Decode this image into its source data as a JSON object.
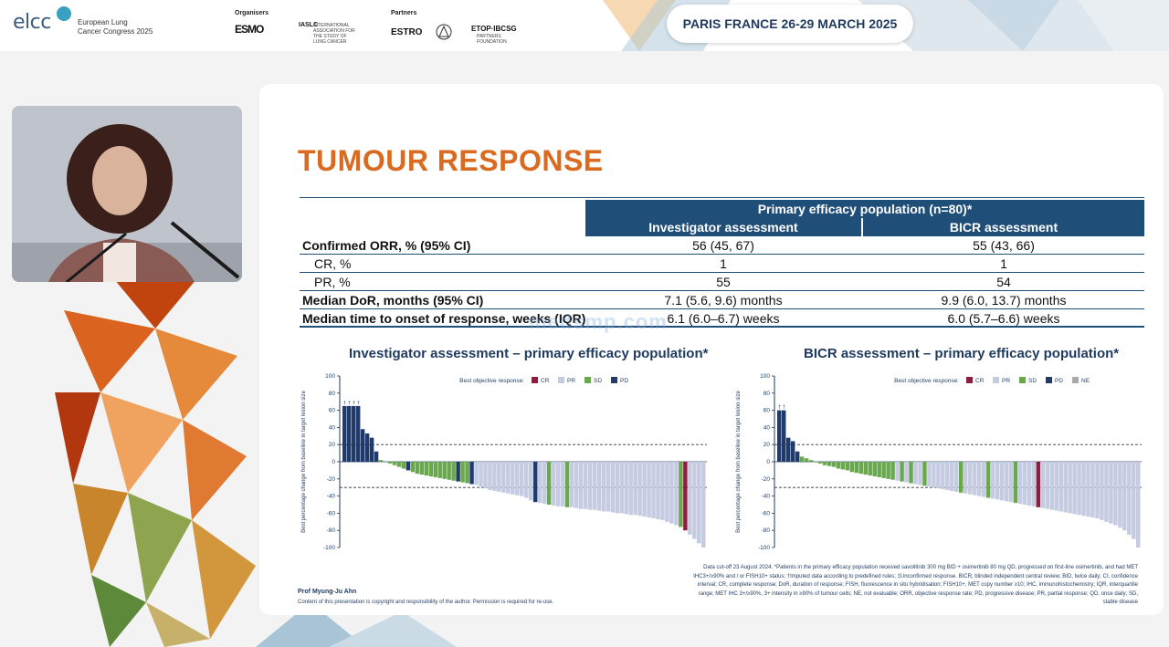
{
  "header": {
    "brand": "elcc",
    "brand_sub_line1": "European Lung",
    "brand_sub_line2": "Cancer Congress 2025",
    "organisers_label": "Organisers",
    "organiser_1": "ESMO",
    "organiser_2": "IASLC",
    "organiser_2_sub": "INTERNATIONAL ASSOCIATION FOR THE STUDY OF LUNG CANCER",
    "partners_label": "Partners",
    "partner_1": "ESTRO",
    "partner_3": "ETOP·IBCSG",
    "partner_3_sub": "PARTNERS FOUNDATION",
    "event_location": "PARIS FRANCE 26-29 MARCH 2025"
  },
  "slide": {
    "title": "TUMOUR RESPONSE",
    "table": {
      "header_top": "Primary efficacy population (n=80)*",
      "col_1": "Investigator assessment",
      "col_2": "BICR assessment",
      "rows": [
        {
          "label": "Confirmed ORR, % (95% CI)",
          "v1": "56 (45, 67)",
          "v2": "55 (43, 66)"
        },
        {
          "label": "CR, %",
          "v1": "1",
          "v2": "1"
        },
        {
          "label": "PR, %",
          "v1": "55",
          "v2": "54"
        },
        {
          "label": "Median DoR, months (95% CI)",
          "v1": "7.1 (5.6, 9.6) months",
          "v2": "9.9 (6.0, 13.7) months"
        },
        {
          "label": "Median time to onset of response, weeks (IQR)",
          "v1": "6.1 (6.0–6.7) weeks",
          "v2": "6.0 (5.7–6.6) weeks"
        }
      ]
    },
    "watermark": "medsmp.com",
    "presenter": "Prof Myung-Ju Ahn",
    "copyright": "Content of this presentation is copyright and responsibility of the author. Permission is required for re-use.",
    "footnote": "Data cut-off 23 August 2024. *Patients in the primary efficacy population received savolitinib 300 mg BID + osimertinib 80 mg QD, progressed on first-line osimertinib, and had MET IHC3+/≥90% and / or FISH10+ status; †Imputed data according to predefined rules; ‡Unconfirmed response. BICR, blinded independent central review; BID, twice daily; CI, confidence interval; CR, complete response; DoR, duration of response; FISH, fluorescence in situ hybridisation; FISH10+, MET copy number ≥10; IHC, immunohistochemistry; IQR, interquartile range; MET IHC 3+/≥90%, 3+ intensity in ≥90% of tumour cells; NE, not evaluable; ORR, objective response rate; PD, progressive disease; PR, partial response; QD, once daily; SD, stable disease"
  },
  "colors": {
    "CR": "#8b1e3f",
    "PR": "#c5cbe0",
    "SD": "#6aa84f",
    "PD": "#1f3a6b",
    "NE": "#a8a8a8",
    "title_orange": "#d96a1f",
    "table_navy": "#1f4e79"
  },
  "chart_data": [
    {
      "type": "bar",
      "title": "Investigator assessment – primary efficacy population*",
      "ylabel": "Best percentage change from baseline in target lesion size",
      "ylim": [
        -100,
        100
      ],
      "yticks": [
        100,
        80,
        60,
        40,
        20,
        0,
        -20,
        -40,
        -60,
        -80,
        -100
      ],
      "reference_lines": [
        20,
        -30
      ],
      "legend_title": "Best objective response:",
      "legend": [
        "CR",
        "PR",
        "SD",
        "PD"
      ],
      "imputed_marks_label": "†",
      "unconfirmed_marks_label": "‡",
      "values": [
        65,
        65,
        65,
        65,
        38,
        33,
        28,
        12,
        2,
        0,
        -2,
        -4,
        -6,
        -8,
        -10,
        -12,
        -14,
        -15,
        -16,
        -17,
        -18,
        -19,
        -20,
        -21,
        -22,
        -23,
        -24,
        -25,
        -26,
        -27,
        -29,
        -31,
        -33,
        -34,
        -35,
        -36,
        -37,
        -38,
        -39,
        -40,
        -42,
        -45,
        -47,
        -48,
        -49,
        -50,
        -51,
        -52,
        -52,
        -53,
        -53,
        -54,
        -55,
        -55,
        -56,
        -56,
        -57,
        -58,
        -58,
        -59,
        -60,
        -60,
        -61,
        -62,
        -62,
        -63,
        -64,
        -65,
        -66,
        -67,
        -68,
        -70,
        -72,
        -74,
        -76,
        -80,
        -85,
        -90,
        -95,
        -100
      ],
      "responses": [
        "PD",
        "PD",
        "PD",
        "PD",
        "PD",
        "PD",
        "PD",
        "PD",
        "SD",
        "SD",
        "SD",
        "SD",
        "SD",
        "SD",
        "PD",
        "SD",
        "SD",
        "SD",
        "SD",
        "SD",
        "SD",
        "SD",
        "SD",
        "SD",
        "SD",
        "PD",
        "SD",
        "SD",
        "PD",
        "PR",
        "PR",
        "PR",
        "PR",
        "PR",
        "PR",
        "PR",
        "PR",
        "PR",
        "PR",
        "PR",
        "PR",
        "PR",
        "PD",
        "PR",
        "PR",
        "SD",
        "PR",
        "PR",
        "PR",
        "SD",
        "PR",
        "PR",
        "PR",
        "PR",
        "PR",
        "PR",
        "PR",
        "PR",
        "PR",
        "PR",
        "PR",
        "PR",
        "PR",
        "PR",
        "PR",
        "PR",
        "PR",
        "PR",
        "PR",
        "PR",
        "PR",
        "PR",
        "PR",
        "PR",
        "SD",
        "CR",
        "PR",
        "PR",
        "PR",
        "PR"
      ]
    },
    {
      "type": "bar",
      "title": "BICR assessment – primary efficacy population*",
      "ylabel": "Best percentage change from baseline in target lesion size",
      "ylim": [
        -100,
        100
      ],
      "yticks": [
        100,
        80,
        60,
        40,
        20,
        0,
        -20,
        -40,
        -60,
        -80,
        -100
      ],
      "reference_lines": [
        20,
        -30
      ],
      "legend_title": "Best objective response:",
      "legend": [
        "CR",
        "PR",
        "SD",
        "PD",
        "NE"
      ],
      "imputed_marks_label": "†",
      "unconfirmed_marks_label": "‡",
      "values": [
        60,
        60,
        28,
        24,
        12,
        6,
        4,
        2,
        0,
        -2,
        -4,
        -5,
        -6,
        -8,
        -9,
        -10,
        -12,
        -13,
        -14,
        -15,
        -16,
        -17,
        -18,
        -19,
        -20,
        -21,
        -22,
        -23,
        -24,
        -25,
        -26,
        -27,
        -28,
        -29,
        -30,
        -31,
        -32,
        -33,
        -34,
        -35,
        -36,
        -37,
        -38,
        -39,
        -40,
        -41,
        -42,
        -43,
        -44,
        -45,
        -46,
        -47,
        -48,
        -49,
        -50,
        -51,
        -52,
        -53,
        -54,
        -55,
        -56,
        -57,
        -58,
        -59,
        -60,
        -61,
        -62,
        -63,
        -64,
        -65,
        -66,
        -68,
        -70,
        -72,
        -74,
        -77,
        -80,
        -85,
        -90,
        -100
      ],
      "responses": [
        "PD",
        "PD",
        "PD",
        "PD",
        "PD",
        "SD",
        "SD",
        "SD",
        "SD",
        "SD",
        "SD",
        "SD",
        "SD",
        "SD",
        "SD",
        "SD",
        "SD",
        "SD",
        "SD",
        "SD",
        "SD",
        "SD",
        "SD",
        "SD",
        "SD",
        "SD",
        "PR",
        "SD",
        "PR",
        "SD",
        "PR",
        "PR",
        "SD",
        "PR",
        "PR",
        "PR",
        "PR",
        "PR",
        "PR",
        "PR",
        "SD",
        "PR",
        "PR",
        "PR",
        "PR",
        "PR",
        "SD",
        "PR",
        "PR",
        "PR",
        "PR",
        "PR",
        "SD",
        "PR",
        "PR",
        "PR",
        "PR",
        "CR",
        "PR",
        "PR",
        "PR",
        "PR",
        "PR",
        "PR",
        "PR",
        "PR",
        "PR",
        "PR",
        "PR",
        "PR",
        "PR",
        "PR",
        "PR",
        "PR",
        "PR",
        "PR",
        "PR",
        "PR",
        "PR",
        "PR"
      ]
    }
  ]
}
